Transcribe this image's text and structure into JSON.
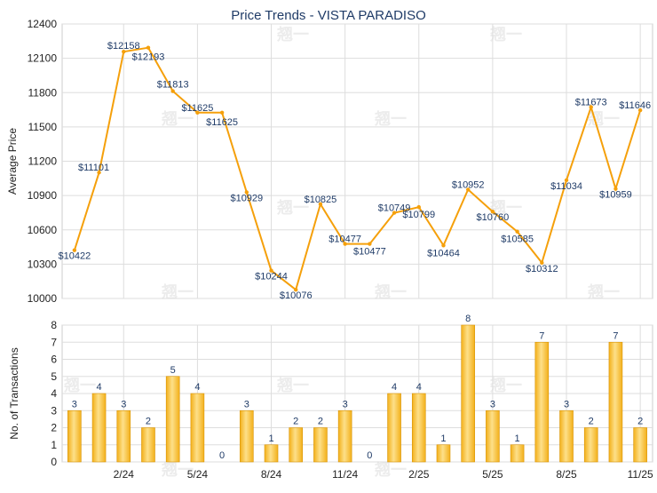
{
  "title": "Price Trends - VISTA PARADISO",
  "colors": {
    "line": "#f5a00b",
    "bar": "#f3b01a",
    "bar_light": "#fde08a",
    "grid": "#dddddd",
    "label": "#1f3b67",
    "watermark": "#ececec"
  },
  "watermark_text": "翘一",
  "chart_data": [
    {
      "type": "line",
      "title": "Price Trends - VISTA PARADISO",
      "ylabel": "Average Price",
      "ylim": [
        10000,
        12400
      ],
      "yticks": [
        10000,
        10300,
        10600,
        10900,
        11200,
        11500,
        11800,
        12100,
        12400
      ],
      "grid": true,
      "series": [
        {
          "values": [
            10422,
            11101,
            12158,
            12193,
            11813,
            11625,
            11625,
            10929,
            10244,
            10076,
            10825,
            10477,
            10477,
            10749,
            10799,
            10464,
            10952,
            10760,
            10585,
            10312,
            11034,
            11673,
            10959,
            11646
          ],
          "labels": [
            "$10422",
            "$11101",
            "$12158",
            "$12193",
            "$11813",
            "$11625",
            "$11625",
            "$10929",
            "$10244",
            "$10076",
            "$10825",
            "$10477",
            "$10477",
            "$10749",
            "$10799",
            "$10464",
            "$10952",
            "$10760",
            "$10585",
            "$10312",
            "$11034",
            "$11673",
            "$10959",
            "$11646"
          ]
        }
      ]
    },
    {
      "type": "bar",
      "ylabel": "No. of Transactions",
      "ylim": [
        0,
        8
      ],
      "yticks": [
        0,
        1,
        2,
        3,
        4,
        5,
        6,
        7,
        8
      ],
      "grid": true,
      "x_tick_labels": [
        "2/24",
        "5/24",
        "8/24",
        "11/24",
        "2/25",
        "5/25",
        "8/25",
        "11/25"
      ],
      "values": [
        3,
        4,
        3,
        2,
        5,
        4,
        0,
        3,
        1,
        2,
        2,
        3,
        0,
        4,
        4,
        1,
        8,
        3,
        1,
        7,
        3,
        2,
        7,
        2
      ]
    }
  ]
}
